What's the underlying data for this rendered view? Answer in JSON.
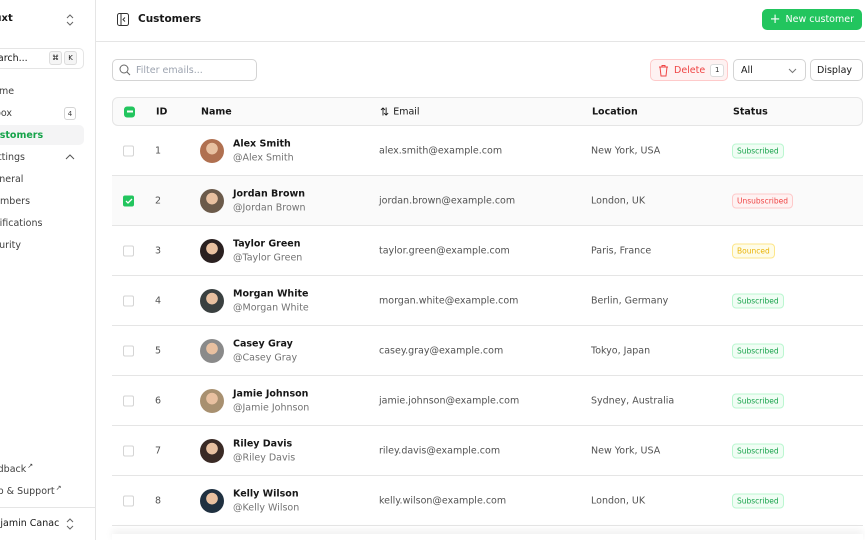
{
  "sidebar": {
    "team": "Nuxt",
    "search_placeholder": "Search...",
    "shortcut": [
      "⌘",
      "K"
    ],
    "items": [
      {
        "label": "Home"
      },
      {
        "label": "Inbox",
        "badge": "4"
      },
      {
        "label": "Customers",
        "active": true
      },
      {
        "label": "Settings",
        "expanded": true
      },
      {
        "label": "General"
      },
      {
        "label": "Members"
      },
      {
        "label": "Notifications"
      },
      {
        "label": "Security"
      }
    ],
    "footer_links": [
      {
        "label": "Feedback"
      },
      {
        "label": "Help & Support"
      }
    ],
    "user": "Benjamin Canac"
  },
  "header": {
    "title": "Customers",
    "new_button": "New customer"
  },
  "toolbar": {
    "filter_placeholder": "Filter emails...",
    "delete_label": "Delete",
    "delete_count": "1",
    "status_filter": "All",
    "display_label": "Display"
  },
  "table": {
    "columns": [
      "ID",
      "Name",
      "Email",
      "Location",
      "Status"
    ],
    "rows": [
      {
        "id": "1",
        "name": "Alex Smith",
        "handle": "@Alex Smith",
        "email": "alex.smith@example.com",
        "location": "New York, USA",
        "status": "Subscribed",
        "selected": false
      },
      {
        "id": "2",
        "name": "Jordan Brown",
        "handle": "@Jordan Brown",
        "email": "jordan.brown@example.com",
        "location": "London, UK",
        "status": "Unsubscribed",
        "selected": true
      },
      {
        "id": "3",
        "name": "Taylor Green",
        "handle": "@Taylor Green",
        "email": "taylor.green@example.com",
        "location": "Paris, France",
        "status": "Bounced",
        "selected": false
      },
      {
        "id": "4",
        "name": "Morgan White",
        "handle": "@Morgan White",
        "email": "morgan.white@example.com",
        "location": "Berlin, Germany",
        "status": "Subscribed",
        "selected": false
      },
      {
        "id": "5",
        "name": "Casey Gray",
        "handle": "@Casey Gray",
        "email": "casey.gray@example.com",
        "location": "Tokyo, Japan",
        "status": "Subscribed",
        "selected": false
      },
      {
        "id": "6",
        "name": "Jamie Johnson",
        "handle": "@Jamie Johnson",
        "email": "jamie.johnson@example.com",
        "location": "Sydney, Australia",
        "status": "Subscribed",
        "selected": false
      },
      {
        "id": "7",
        "name": "Riley Davis",
        "handle": "@Riley Davis",
        "email": "riley.davis@example.com",
        "location": "New York, USA",
        "status": "Subscribed",
        "selected": false
      },
      {
        "id": "8",
        "name": "Kelly Wilson",
        "handle": "@Kelly Wilson",
        "email": "kelly.wilson@example.com",
        "location": "London, UK",
        "status": "Subscribed",
        "selected": false
      }
    ]
  },
  "colors": {
    "accent": "#22c55e",
    "subscribed": "#16a34a",
    "unsubscribed": "#ef4444",
    "bounced": "#eab308"
  }
}
